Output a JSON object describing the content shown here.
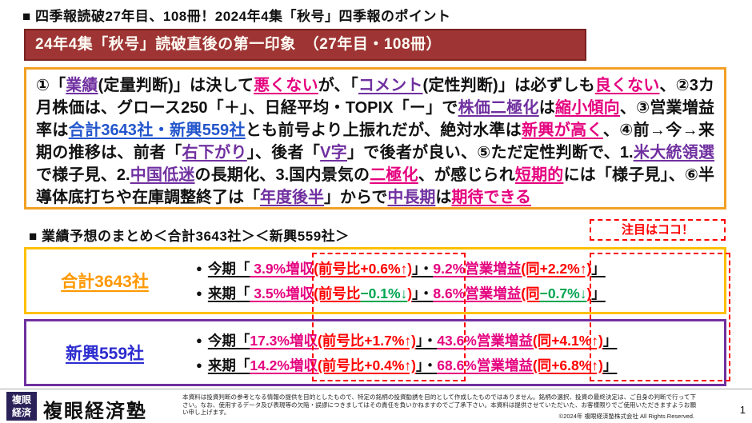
{
  "page": {
    "title": "■ 四季報読破27年目、108冊！2024年4集「秋号」四季報のポイント",
    "page_number": "1"
  },
  "header_banner": {
    "text": "24年4集「秋号」読破直後の第一印象　（27年目・108冊）"
  },
  "impression_box": {
    "segments": [
      {
        "t": "①「"
      },
      {
        "t": "業績",
        "c": "p",
        "u": true
      },
      {
        "t": "(定量判断)」は決して"
      },
      {
        "t": "悪くない",
        "c": "m",
        "u": true
      },
      {
        "t": "が、「"
      },
      {
        "t": "コメント",
        "c": "p",
        "u": true
      },
      {
        "t": "(定性判断)」は必ずしも"
      },
      {
        "t": "良くない",
        "c": "m",
        "u": true
      },
      {
        "t": "、②3カ月株価は、グロース250「＋」、日経平均・TOPIX「ー」で"
      },
      {
        "t": "株価二極化",
        "c": "p",
        "u": true
      },
      {
        "t": "は"
      },
      {
        "t": "縮小傾向",
        "c": "m",
        "u": true
      },
      {
        "t": "、③営業増益率は"
      },
      {
        "t": "合計3643社・新興559社",
        "c": "b",
        "u": true
      },
      {
        "t": "とも前号より上振れだが、絶対水準は"
      },
      {
        "t": "新興が高く",
        "c": "m",
        "u": true
      },
      {
        "t": "、④前→今→来期の推移は、前者「"
      },
      {
        "t": "右下がり",
        "c": "p",
        "u": true
      },
      {
        "t": "」、後者「"
      },
      {
        "t": "V字",
        "c": "p",
        "u": true
      },
      {
        "t": "」で後者が良い、⑤ただ定性判断で、1."
      },
      {
        "t": "米大統領選",
        "c": "p",
        "u": true
      },
      {
        "t": "で様子見、2."
      },
      {
        "t": "中国低迷",
        "c": "p",
        "u": true
      },
      {
        "t": "の長期化、3.国内景気の"
      },
      {
        "t": "二極化",
        "c": "m",
        "u": true
      },
      {
        "t": "、が感じられ"
      },
      {
        "t": "短期的",
        "c": "m",
        "u": true
      },
      {
        "t": "には「様子見」、⑥半導体底打ちや在庫調整終了は「"
      },
      {
        "t": "年度後半",
        "c": "p",
        "u": true
      },
      {
        "t": "」からで"
      },
      {
        "t": "中長期",
        "c": "p",
        "u": true
      },
      {
        "t": "は"
      },
      {
        "t": "期待できる",
        "c": "m",
        "u": true
      }
    ]
  },
  "summary": {
    "heading": "■ 業績予想のまとめ＜合計3643社＞＜新興559社＞",
    "callout": "注目はココ！",
    "bullet": "●",
    "total_box": {
      "label": "合計3643社",
      "rows": [
        {
          "segments": [
            {
              "t": "今期「",
              "u": true
            },
            {
              "t": " 3.9%増収",
              "c": "m",
              "u": true
            },
            {
              "t": "(前号比+0.6%↑)",
              "c": "r",
              "u": true
            },
            {
              "t": "」・",
              "u": true
            },
            {
              "t": "9.2%営業増益",
              "c": "m",
              "u": true
            },
            {
              "t": "(同+2.2%↑)",
              "c": "r",
              "u": true
            },
            {
              "t": "」",
              "u": true
            }
          ]
        },
        {
          "segments": [
            {
              "t": "来期「",
              "u": true
            },
            {
              "t": " 3.5%増収",
              "c": "m",
              "u": true
            },
            {
              "t": "(前号比",
              "c": "r",
              "u": true
            },
            {
              "t": "−0.1%↓",
              "c": "g",
              "u": true
            },
            {
              "t": ")",
              "c": "r",
              "u": true
            },
            {
              "t": "」・",
              "u": true
            },
            {
              "t": "8.6%営業増益",
              "c": "m",
              "u": true
            },
            {
              "t": "(同",
              "c": "r",
              "u": true
            },
            {
              "t": "−0.7%↓",
              "c": "g",
              "u": true
            },
            {
              "t": ")",
              "c": "r",
              "u": true
            },
            {
              "t": "」",
              "u": true
            }
          ]
        }
      ]
    },
    "emerging_box": {
      "label": "新興559社",
      "rows": [
        {
          "segments": [
            {
              "t": "今期「",
              "u": true
            },
            {
              "t": "17.3%増収",
              "c": "m",
              "u": true
            },
            {
              "t": "(前号比+1.7%↑)",
              "c": "r",
              "u": true
            },
            {
              "t": "」・",
              "u": true
            },
            {
              "t": "43.6%営業増益",
              "c": "m",
              "u": true
            },
            {
              "t": "(同+4.1%↑)",
              "c": "r",
              "u": true
            },
            {
              "t": "」",
              "u": true
            }
          ]
        },
        {
          "segments": [
            {
              "t": "来期「",
              "u": true
            },
            {
              "t": "14.2%増収",
              "c": "m",
              "u": true
            },
            {
              "t": "(前号比+0.4%↑)",
              "c": "r",
              "u": true
            },
            {
              "t": "」・",
              "u": true
            },
            {
              "t": "68.6%営業増益",
              "c": "m",
              "u": true
            },
            {
              "t": "(同+6.8%↑)",
              "c": "r",
              "u": true
            },
            {
              "t": "」",
              "u": true
            }
          ]
        }
      ]
    }
  },
  "footer": {
    "logo_line1": "複眼",
    "logo_line2": "経済",
    "brand": "複眼経済塾",
    "disclaimer": "本資料は投資判断の参考となる情報の提供を目的としたもので、特定の銘柄の投資勧誘を目的として作成したものではありません。銘柄の選択、投資の最終決定は、ご自身の判断で行って下さい。なお、使用するデータ及び表現等の欠陥・誤謬につきましてはその責任を負いかねますのでご了承下さい。本資料は提供させていただいた、お客様限りでご使用いただきますようお願い申し上げます。",
    "copyright": "©2024年 複眼経済塾株式会社 All Rights Reserved."
  },
  "colors": {
    "banner_bg": "#9e3434",
    "impression_border": "#f2a024",
    "total_border": "#ffc000",
    "total_label": "#ff9800",
    "emerging_border": "#7030a0",
    "emerging_label": "#2b2bd0",
    "purple": "#7030a0",
    "magenta": "#e5007e",
    "red": "#ff0000",
    "green": "#00a550",
    "blue": "#2255cc",
    "logo_bg": "#2a2158"
  }
}
